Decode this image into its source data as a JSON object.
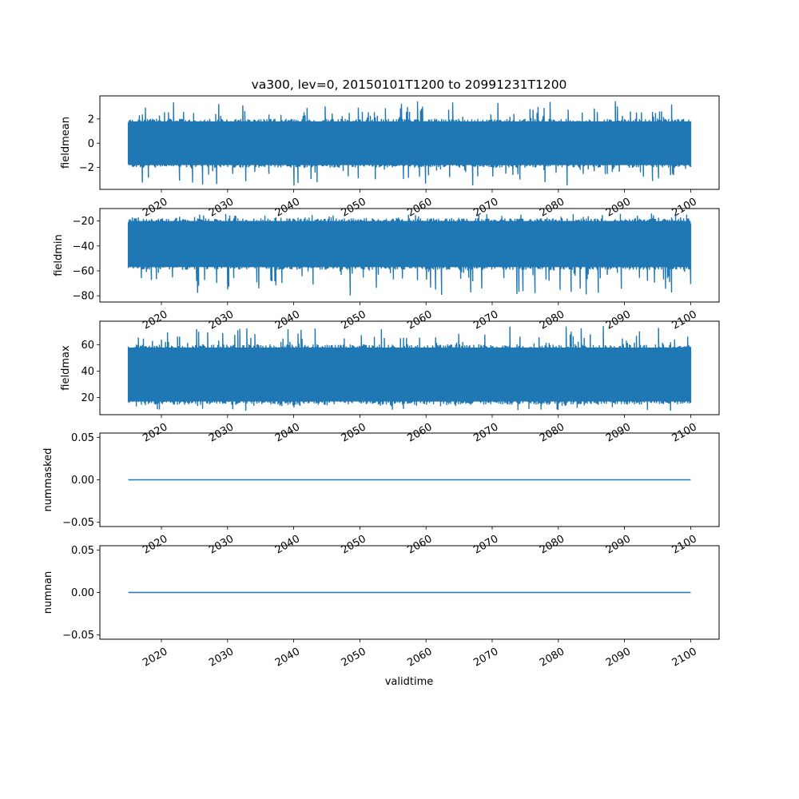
{
  "figure": {
    "title": "va300, lev=0, 20150101T1200 to 20991231T1200",
    "xlabel": "validtime"
  },
  "chart_data": [
    {
      "type": "line",
      "title": "va300, lev=0, 20150101T1200 to 20991231T1200",
      "xlabel": "",
      "ylabel": "fieldmean",
      "x_range": [
        2015.0,
        2100.0
      ],
      "xlim": [
        2010.7,
        2104.3
      ],
      "ylim": [
        -3.8,
        3.9
      ],
      "yticks": [
        -2,
        0,
        2
      ],
      "ytick_labels": [
        "−2",
        "0",
        "2"
      ],
      "xticks": [
        2020,
        2030,
        2040,
        2050,
        2060,
        2070,
        2080,
        2090,
        2100
      ],
      "xtick_labels": [
        "2020",
        "2030",
        "2040",
        "2050",
        "2060",
        "2070",
        "2080",
        "2090",
        "2100"
      ],
      "band": {
        "typical_low": -1.8,
        "typical_high": 1.8,
        "min": -3.5,
        "max": 3.5
      },
      "color": "#1f77b4",
      "grid": false
    },
    {
      "type": "line",
      "xlabel": "",
      "ylabel": "fieldmin",
      "x_range": [
        2015.0,
        2100.0
      ],
      "xlim": [
        2010.7,
        2104.3
      ],
      "ylim": [
        -85,
        -10
      ],
      "yticks": [
        -80,
        -60,
        -40,
        -20
      ],
      "ytick_labels": [
        "−80",
        "−60",
        "−40",
        "−20"
      ],
      "xticks": [
        2020,
        2030,
        2040,
        2050,
        2060,
        2070,
        2080,
        2090,
        2100
      ],
      "xtick_labels": [
        "2020",
        "2030",
        "2040",
        "2050",
        "2060",
        "2070",
        "2080",
        "2090",
        "2100"
      ],
      "band": {
        "typical_low": -57,
        "typical_high": -20,
        "min": -81,
        "max": -14
      },
      "color": "#1f77b4",
      "grid": false
    },
    {
      "type": "line",
      "xlabel": "",
      "ylabel": "fieldmax",
      "x_range": [
        2015.0,
        2100.0
      ],
      "xlim": [
        2010.7,
        2104.3
      ],
      "ylim": [
        7,
        78
      ],
      "yticks": [
        20,
        40,
        60
      ],
      "ytick_labels": [
        "20",
        "40",
        "60"
      ],
      "xticks": [
        2020,
        2030,
        2040,
        2050,
        2060,
        2070,
        2080,
        2090,
        2100
      ],
      "xtick_labels": [
        "2020",
        "2030",
        "2040",
        "2050",
        "2060",
        "2070",
        "2080",
        "2090",
        "2100"
      ],
      "band": {
        "typical_low": 17,
        "typical_high": 58,
        "min": 10,
        "max": 75
      },
      "color": "#1f77b4",
      "grid": false
    },
    {
      "type": "line",
      "xlabel": "",
      "ylabel": "nummasked",
      "x": [
        2015.0,
        2100.0
      ],
      "y": [
        0.0,
        0.0
      ],
      "xlim": [
        2010.7,
        2104.3
      ],
      "ylim": [
        -0.055,
        0.055
      ],
      "yticks": [
        -0.05,
        0.0,
        0.05
      ],
      "ytick_labels": [
        "−0.05",
        "0.00",
        "0.05"
      ],
      "xticks": [
        2020,
        2030,
        2040,
        2050,
        2060,
        2070,
        2080,
        2090,
        2100
      ],
      "xtick_labels": [
        "2020",
        "2030",
        "2040",
        "2050",
        "2060",
        "2070",
        "2080",
        "2090",
        "2100"
      ],
      "color": "#1f77b4",
      "grid": false
    },
    {
      "type": "line",
      "xlabel": "validtime",
      "ylabel": "numnan",
      "x": [
        2015.0,
        2100.0
      ],
      "y": [
        0.0,
        0.0
      ],
      "xlim": [
        2010.7,
        2104.3
      ],
      "ylim": [
        -0.055,
        0.055
      ],
      "yticks": [
        -0.05,
        0.0,
        0.05
      ],
      "ytick_labels": [
        "−0.05",
        "0.00",
        "0.05"
      ],
      "xticks": [
        2020,
        2030,
        2040,
        2050,
        2060,
        2070,
        2080,
        2090,
        2100
      ],
      "xtick_labels": [
        "2020",
        "2030",
        "2040",
        "2050",
        "2060",
        "2070",
        "2080",
        "2090",
        "2100"
      ],
      "color": "#1f77b4",
      "grid": false
    }
  ]
}
